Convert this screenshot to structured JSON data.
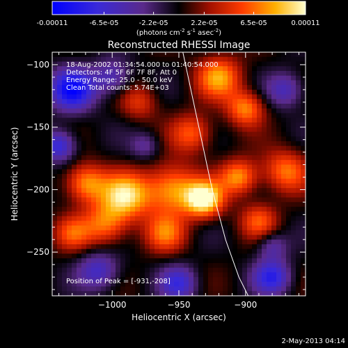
{
  "colorbar": {
    "tick_labels": [
      "-0.00011",
      "-6.5e-05",
      "-2.2e-05",
      "2.2e-05",
      "6.5e-05",
      "0.00011"
    ],
    "tick_values": [
      -0.00011,
      -6.5e-05,
      -2.2e-05,
      2.2e-05,
      6.5e-05,
      0.00011
    ],
    "range": [
      -0.00011,
      0.00011
    ],
    "unit_base": "(photons cm",
    "unit_exp1": "-2",
    "unit_mid": " s",
    "unit_exp2": "-1",
    "unit_mid2": " asec",
    "unit_exp3": "-2",
    "unit_end": ")"
  },
  "chart_data": {
    "type": "heatmap",
    "title": "Reconstructed RHESSI Image",
    "xlabel": "Heliocentric X (arcsec)",
    "ylabel": "Heliocentric Y (arcsec)",
    "xlim": [
      -1045,
      -855
    ],
    "ylim": [
      -285,
      -90
    ],
    "x_ticks": [
      -1000,
      -950,
      -900
    ],
    "y_ticks": [
      -100,
      -150,
      -200,
      -250
    ],
    "x_tick_labels": [
      "−1000",
      "−950",
      "−900"
    ],
    "y_tick_labels": [
      "−100",
      "−150",
      "−200",
      "−250"
    ],
    "annotations": [
      "18-Aug-2002 01:34:54.000 to 01:40:54.000",
      "Detectors: 4F 5F 6F 7F 8F, Att 0",
      "Energy Range: 25.0 - 50.0 keV",
      "Clean     Total counts: 5.74E+03"
    ],
    "peak_label": "Position of Peak = [-931,-208]",
    "peak": [
      -931,
      -208
    ],
    "limb_curve": [
      [
        -947,
        -90
      ],
      [
        -935,
        -150
      ],
      [
        -925,
        -200
      ],
      [
        -915,
        -240
      ],
      [
        -905,
        -270
      ],
      [
        -898,
        -285
      ]
    ],
    "colormap": "red-temperature",
    "blobs": [
      {
        "x": -931,
        "y": -208,
        "amp": 1.0,
        "sigma": 10
      },
      {
        "x": -955,
        "y": -200,
        "amp": 0.75,
        "sigma": 14
      },
      {
        "x": -990,
        "y": -205,
        "amp": 0.85,
        "sigma": 13
      },
      {
        "x": -1020,
        "y": -195,
        "amp": 0.7,
        "sigma": 11
      },
      {
        "x": -1005,
        "y": -228,
        "amp": 0.6,
        "sigma": 12
      },
      {
        "x": -960,
        "y": -235,
        "amp": 0.55,
        "sigma": 11
      },
      {
        "x": -920,
        "y": -110,
        "amp": 0.7,
        "sigma": 12
      },
      {
        "x": -900,
        "y": -135,
        "amp": 0.65,
        "sigma": 10
      },
      {
        "x": -870,
        "y": -185,
        "amp": 0.6,
        "sigma": 12
      },
      {
        "x": -905,
        "y": -190,
        "amp": 0.7,
        "sigma": 10
      },
      {
        "x": -890,
        "y": -225,
        "amp": 0.5,
        "sigma": 10
      },
      {
        "x": -940,
        "y": -155,
        "amp": 0.55,
        "sigma": 11
      },
      {
        "x": -980,
        "y": -130,
        "amp": 0.4,
        "sigma": 10
      },
      {
        "x": -1030,
        "y": -235,
        "amp": 0.45,
        "sigma": 10
      },
      {
        "x": -1030,
        "y": -120,
        "amp": -0.9,
        "sigma": 12
      },
      {
        "x": -1000,
        "y": -110,
        "amp": -0.5,
        "sigma": 10
      },
      {
        "x": -1040,
        "y": -165,
        "amp": -0.7,
        "sigma": 9
      },
      {
        "x": -1010,
        "y": -265,
        "amp": -0.55,
        "sigma": 11
      },
      {
        "x": -880,
        "y": -270,
        "amp": -0.7,
        "sigma": 10
      },
      {
        "x": -870,
        "y": -120,
        "amp": -0.5,
        "sigma": 10
      },
      {
        "x": -950,
        "y": -275,
        "amp": -0.6,
        "sigma": 10
      },
      {
        "x": -880,
        "y": -245,
        "amp": -0.4,
        "sigma": 8
      },
      {
        "x": -975,
        "y": -165,
        "amp": -0.35,
        "sigma": 8
      }
    ]
  },
  "footer": {
    "date_stamp": "2-May-2013 04:14"
  }
}
